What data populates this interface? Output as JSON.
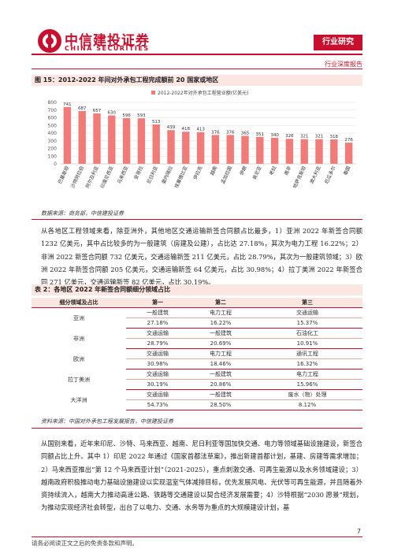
{
  "header": {
    "brand_cn": "中信建投证券",
    "brand_en": "CHINA SECURITIES",
    "section_tab": "行业研究",
    "report_type": "行业深度报告",
    "accent_color": "#c8102e"
  },
  "figure": {
    "title": "图 15：2012-2022 年间对外承包工程完成额前 20 国家或地区",
    "source": "数据来源：商务部，中信建投证券"
  },
  "chart_data": {
    "type": "bar",
    "legend": "2012-2022年对外承包工程营业额(亿美元)",
    "legend_position": "top-center",
    "categories": [
      "巴基斯坦",
      "沙特阿拉伯",
      "阿尔及利亚",
      "印度尼西亚",
      "马来西亚",
      "安哥拉",
      "尼日利亚",
      "委内瑞拉",
      "埃塞俄比亚",
      "伊拉克",
      "越南",
      "孟加拉国",
      "伊朗",
      "肯尼亚",
      "老挝",
      "南非",
      "哈萨克斯坦",
      "澳大利亚",
      "厄瓜多尔",
      "泰国"
    ],
    "values": [
      741,
      687,
      657,
      630,
      596,
      593,
      513,
      439,
      418,
      413,
      376,
      376,
      365,
      351,
      340,
      326,
      321,
      321,
      318,
      276
    ],
    "ylim": [
      0,
      800
    ],
    "yticks": [
      0,
      100,
      200,
      300,
      400,
      500,
      600,
      700,
      800
    ],
    "bar_color": "#f07b78",
    "grid": true
  },
  "paragraph1": "从各地区工程领域来看，除亚洲外，其他地区交通运输新签合同额占比最多，1）亚洲 2022 年新签合同额 1232 亿美元，其中占比较多的为一般建筑（房建及公建），占比达 27.18%，其次为电力工程 16.22%；2）非洲 2022 新签合同额 732 亿美元，交通运输新签 211 亿美元，占比 28.79%，其次为一般建筑领域；3）欧洲 2022 年新签合同额 205 亿美元，交通运输新签 64 亿美元，占比 30.98%；4）拉丁美洲 2022 年新签合同 271 亿美元，交通运输新签 82 亿美元，占比 30.19%。",
  "table": {
    "title": "表 2：各地区 2022 年新签合同额细分领域占比",
    "headers": [
      "细分领域及占比",
      "第一",
      "第二",
      "第三"
    ],
    "rows": [
      {
        "region": "亚洲",
        "fields": [
          "一般建筑",
          "电力工程",
          "交通运输"
        ],
        "shares": [
          "27.18%",
          "16.22%",
          "15.37%"
        ]
      },
      {
        "region": "非洲",
        "fields": [
          "交通运输",
          "一般建筑",
          "石油化工"
        ],
        "shares": [
          "28.79%",
          "20.69%",
          "10.91%"
        ]
      },
      {
        "region": "欧洲",
        "fields": [
          "交通运输",
          "电力工程",
          "通讯工程"
        ],
        "shares": [
          "30.98%",
          "18.46%",
          "16.32%"
        ]
      },
      {
        "region": "拉丁美洲",
        "fields": [
          "交通运输",
          "一般建筑",
          "电力工程"
        ],
        "shares": [
          "30.19%",
          "20.86%",
          "15.96%"
        ]
      },
      {
        "region": "大洋洲",
        "fields": [
          "交通运输",
          "一般建筑",
          "废水（物）处理"
        ],
        "shares": [
          "54.73%",
          "28.50%",
          "8.12%"
        ]
      }
    ],
    "source": "资料来源：中国对外承包工程发展报告，中信建投证券"
  },
  "paragraph2": "从国别来看，近年来印尼、沙特、马来西亚、越南、尼日利亚等国加快交通、电力等领域基础设施建设，新签合同额占比上升。其中 1）印尼 2022 年通过《国家首都法草案》，推出新建首都计划，基建、房建等需求增加；2）马来西亚推出“第 12 个马来西亚计划”（2021-2025），重点刺激交通、可再生能源以及水务领域建设；3）越南政府积极推动电力基础设施建设以实现温室气体减排目标，优先发展风电、光伏等可再生能源，并且随着外资持续流入，越南大力推动高速公路、铁路等交通建设以契合经济发展需要；4）沙特根据“2030 愿景”规划，为推动实现经济社会转型，出台了以电力、交通、水务等为重点的大规模建设计划，基",
  "footer": {
    "disclaimer": "请务必阅读正文之后的免责条款和声明。",
    "page": "7"
  }
}
